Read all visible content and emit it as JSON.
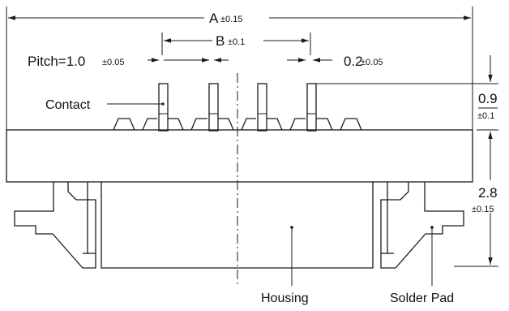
{
  "dimensions": {
    "A": {
      "label": "A",
      "tolerance": "±0.15"
    },
    "B": {
      "label": "B",
      "tolerance": "±0.1"
    },
    "pitch": {
      "label": "Pitch=1.0",
      "tolerance": "±0.05"
    },
    "contact_width": {
      "label": "0.2",
      "tolerance": "±0.05"
    },
    "contact_height": {
      "label": "0.9",
      "tolerance": "±0.1"
    },
    "housing_height": {
      "label": "2.8",
      "tolerance": "±0.15"
    }
  },
  "callouts": {
    "contact": "Contact",
    "housing": "Housing",
    "solder_pad": "Solder Pad"
  }
}
